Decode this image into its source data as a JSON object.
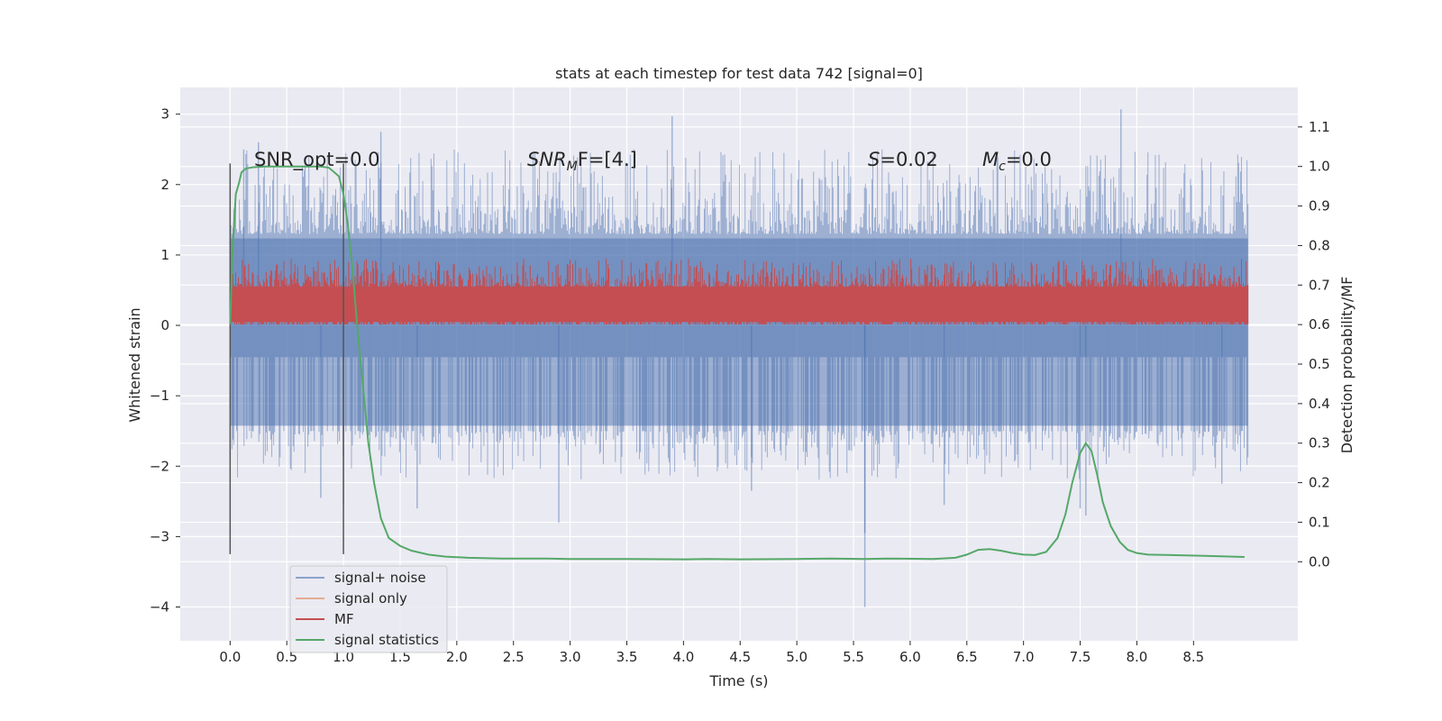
{
  "chart_data": {
    "type": "line",
    "title": "stats at each timestep for test data 742 [signal=0]",
    "xlabel": "Time (s)",
    "ylabel_left": "Whitened strain",
    "ylabel_right": "Detection probability/MF",
    "xlim": [
      -0.44,
      9.42
    ],
    "ylim_left": [
      -4.48,
      3.38
    ],
    "ylim_right": [
      -0.2,
      1.2
    ],
    "x_ticks": [
      0.0,
      0.5,
      1.0,
      1.5,
      2.0,
      2.5,
      3.0,
      3.5,
      4.0,
      4.5,
      5.0,
      5.5,
      6.0,
      6.5,
      7.0,
      7.5,
      8.0,
      8.5
    ],
    "x_tick_labels": [
      "0.0",
      "0.5",
      "1.0",
      "1.5",
      "2.0",
      "2.5",
      "3.0",
      "3.5",
      "4.0",
      "4.5",
      "5.0",
      "5.5",
      "6.0",
      "6.5",
      "7.0",
      "7.5",
      "8.0",
      "8.5"
    ],
    "y_left_ticks": [
      3,
      2,
      1,
      0,
      -1,
      -2,
      -3,
      -4
    ],
    "y_left_tick_labels": [
      "3",
      "2",
      "1",
      "0",
      "−1",
      "−2",
      "−3",
      "−4"
    ],
    "y_right_ticks": [
      1.1,
      1.0,
      0.9,
      0.8,
      0.7,
      0.6,
      0.5,
      0.4,
      0.3,
      0.2,
      0.1,
      0.0
    ],
    "y_right_tick_labels": [
      "1.1",
      "1.0",
      "0.9",
      "0.8",
      "0.7",
      "0.6",
      "0.5",
      "0.4",
      "0.3",
      "0.2",
      "0.1",
      "0.0"
    ],
    "grid": true,
    "legend_position": "lower-left",
    "vertical_markers": [
      {
        "x": 0.0,
        "y_range": [
          -3.25,
          2.3
        ]
      },
      {
        "x": 1.0,
        "y_range": [
          -3.25,
          2.3
        ]
      }
    ],
    "annotations": [
      {
        "id": "snr_opt",
        "text": "SNR_opt=0.0",
        "x": 0.2,
        "y": 2.2
      },
      {
        "id": "snr_mf_pre",
        "text": "SNR",
        "italic": true,
        "x": 2.6,
        "y": 2.2
      },
      {
        "id": "snr_mf_sub",
        "text": "M",
        "italic": true
      },
      {
        "id": "snr_mf_post",
        "text": "F=[4.]"
      },
      {
        "id": "s_pre",
        "text": "S",
        "italic": true,
        "x": 5.6,
        "y": 2.2
      },
      {
        "id": "s_post",
        "text": "=0.02"
      },
      {
        "id": "mc_pre",
        "text": "M",
        "italic": true,
        "x": 6.6,
        "y": 2.2
      },
      {
        "id": "mc_sub",
        "text": "c",
        "italic": true
      },
      {
        "id": "mc_post",
        "text": "=0.0"
      }
    ],
    "series": [
      {
        "name": "signal+ noise",
        "axis": "left",
        "color": "#4c72b0",
        "opacity": 0.5,
        "kind": "noise_band",
        "x_range": [
          0.0,
          8.98
        ],
        "envelope_min": [
          -1.5,
          -2.2
        ],
        "envelope_max": [
          1.3,
          2.5
        ],
        "spikes": [
          {
            "x": 0.12,
            "y": 2.5
          },
          {
            "x": 0.25,
            "y": 2.6
          },
          {
            "x": 1.33,
            "y": 2.75
          },
          {
            "x": 3.9,
            "y": 2.97
          },
          {
            "x": 7.86,
            "y": 3.07
          },
          {
            "x": 5.6,
            "y": -4.0
          },
          {
            "x": 1.0,
            "y": -2.55
          },
          {
            "x": 2.9,
            "y": -2.8
          },
          {
            "x": 5.6,
            "y": -2.95
          },
          {
            "x": 7.5,
            "y": -2.6
          },
          {
            "x": 7.55,
            "y": -2.7
          },
          {
            "x": 8.75,
            "y": -2.25
          },
          {
            "x": 1.65,
            "y": -2.6
          },
          {
            "x": 0.8,
            "y": -2.45
          },
          {
            "x": 6.3,
            "y": -2.55
          },
          {
            "x": 4.6,
            "y": -2.35
          }
        ]
      },
      {
        "name": "signal only",
        "axis": "left",
        "color": "#dd8452",
        "x": [],
        "y": []
      },
      {
        "name": "MF",
        "axis": "left",
        "color": "#c44e52",
        "kind": "noise_band",
        "x_range": [
          0.0,
          8.98
        ],
        "envelope_min": [
          0.05,
          0.12
        ],
        "envelope_max": [
          0.55,
          0.95
        ]
      },
      {
        "name": "signal statistics",
        "axis": "right",
        "color": "#55a868",
        "x": [
          0.0,
          0.02,
          0.05,
          0.08,
          0.1,
          0.14,
          0.2,
          0.3,
          0.5,
          0.7,
          0.8,
          0.87,
          0.92,
          0.96,
          1.0,
          1.04,
          1.08,
          1.12,
          1.17,
          1.22,
          1.27,
          1.33,
          1.4,
          1.5,
          1.6,
          1.75,
          1.9,
          2.1,
          2.4,
          2.8,
          3.0,
          3.5,
          4.0,
          4.2,
          4.5,
          5.0,
          5.3,
          5.6,
          5.8,
          6.2,
          6.4,
          6.5,
          6.6,
          6.7,
          6.8,
          6.9,
          7.0,
          7.1,
          7.2,
          7.3,
          7.37,
          7.43,
          7.5,
          7.55,
          7.6,
          7.65,
          7.7,
          7.77,
          7.85,
          7.92,
          8.0,
          8.1,
          8.3,
          8.6,
          8.95
        ],
        "y": [
          0.6,
          0.78,
          0.93,
          0.96,
          0.985,
          0.995,
          0.998,
          1.0,
          1.0,
          1.0,
          1.0,
          0.997,
          0.985,
          0.975,
          0.93,
          0.85,
          0.74,
          0.6,
          0.45,
          0.3,
          0.2,
          0.11,
          0.06,
          0.04,
          0.028,
          0.018,
          0.013,
          0.01,
          0.008,
          0.008,
          0.007,
          0.007,
          0.006,
          0.007,
          0.006,
          0.007,
          0.008,
          0.007,
          0.008,
          0.007,
          0.01,
          0.018,
          0.03,
          0.032,
          0.028,
          0.022,
          0.018,
          0.017,
          0.025,
          0.06,
          0.12,
          0.2,
          0.275,
          0.3,
          0.28,
          0.22,
          0.15,
          0.09,
          0.05,
          0.03,
          0.022,
          0.018,
          0.017,
          0.015,
          0.012
        ]
      }
    ]
  }
}
